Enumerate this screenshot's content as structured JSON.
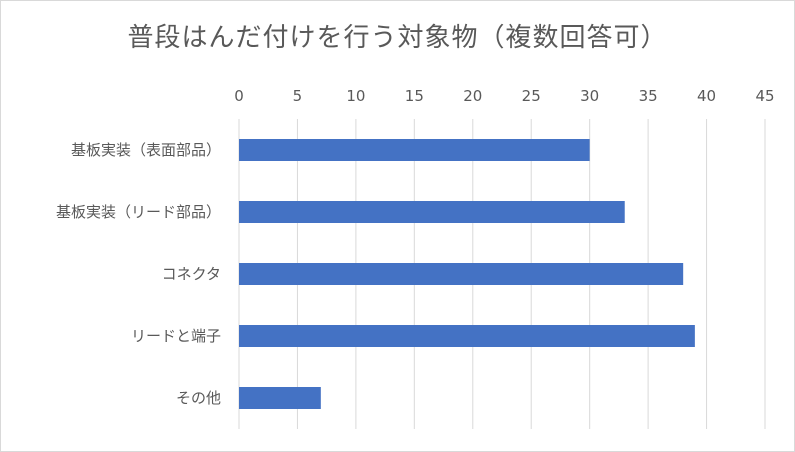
{
  "chart_data": {
    "type": "bar",
    "orientation": "horizontal",
    "title": "普段はんだ付けを行う対象物（複数回答可）",
    "xlabel": "",
    "ylabel": "",
    "categories": [
      "基板実装（表面部品）",
      "基板実装（リード部品）",
      "コネクタ",
      "リードと端子",
      "その他"
    ],
    "values": [
      30,
      33,
      38,
      39,
      7
    ],
    "xlim": [
      0,
      45
    ],
    "x_ticks": [
      0,
      5,
      10,
      15,
      20,
      25,
      30,
      35,
      40,
      45
    ],
    "x_axis_position": "top",
    "grid": true,
    "legend": "none",
    "colors": {
      "bar": "#4472C4",
      "grid": "#d9d9d9",
      "text": "#595959"
    }
  }
}
